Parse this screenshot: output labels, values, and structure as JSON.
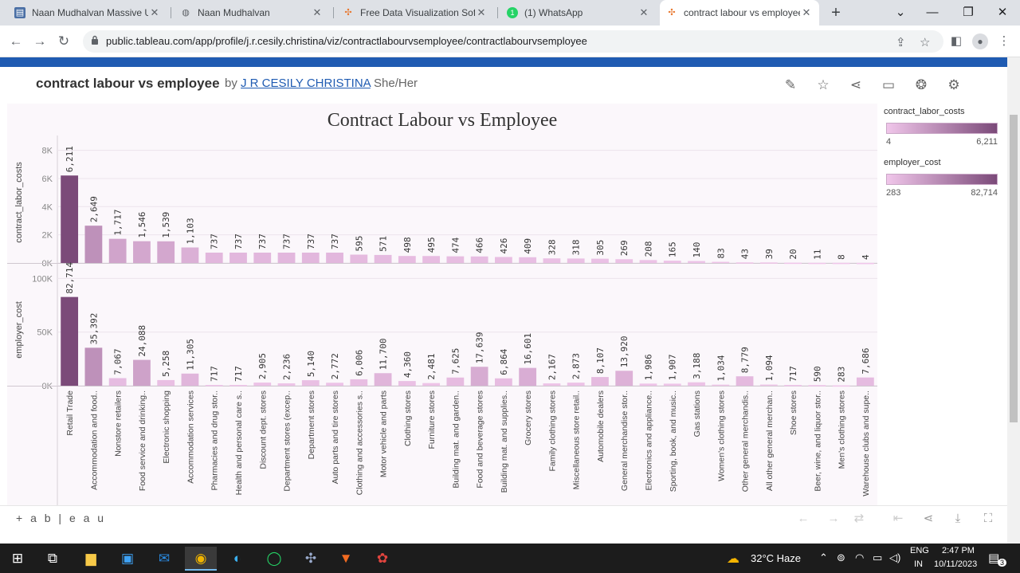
{
  "browser": {
    "tabs": [
      {
        "title": "Naan Mudhalvan Massive U",
        "icon": "book-icon"
      },
      {
        "title": "Naan Mudhalvan",
        "icon": "globe-icon"
      },
      {
        "title": "Free Data Visualization Softw",
        "icon": "tableau-icon"
      },
      {
        "title": "(1) WhatsApp",
        "icon": "whatsapp-icon"
      },
      {
        "title": "contract labour vs employee",
        "icon": "tableau-icon"
      }
    ],
    "url": "public.tableau.com/app/profile/j.r.cesily.christina/viz/contractlabourvsemployee/contractlabourvsemployee"
  },
  "viz": {
    "title": "contract labour vs employee",
    "by": "by",
    "author": "J R CESILY CHRISTINA",
    "pronouns": "She/Her",
    "footer_logo": "+ a b | e a u"
  },
  "legends": [
    {
      "title": "contract_labor_costs",
      "min": "4",
      "max": "6,211"
    },
    {
      "title": "employer_cost",
      "min": "283",
      "max": "82,714"
    }
  ],
  "colors": {
    "light": "#f0c6ea",
    "dark": "#7b4a79",
    "brand": "#1f5bb2"
  },
  "chart_data": {
    "type": "bar",
    "title": "Contract Labour vs Employee",
    "categories": [
      "Retail Trade",
      "Accommodation and food..",
      "Nonstore retailers",
      "Food service and drinking..",
      "Electronic shopping",
      "Accommodation services",
      "Pharmacies and drug stor..",
      "Health and personal care s..",
      "Discount dept. stores",
      "Department stores (excep..",
      "Department stores",
      "Auto parts and tire stores",
      "Clothing and accessories s..",
      "Motor vehicle and parts",
      "Clothing stores",
      "Furniture stores",
      "Building mat. and garden..",
      "Food and beverage stores",
      "Building mat. and supplies..",
      "Grocery stores",
      "Family clothing stores",
      "Miscellaneous store retail..",
      "Automobile dealers",
      "General merchandise stor..",
      "Electronics and appliance..",
      "Sporting, book, and music..",
      "Gas stations",
      "Women's clothing stores",
      "Other general merchandis..",
      "All other general merchan..",
      "Shoe stores",
      "Beer, wine, and liquor stor..",
      "Men's clothing stores",
      "Warehouse clubs and supe.."
    ],
    "series": [
      {
        "name": "contract_labor_costs",
        "values": [
          6211,
          2649,
          1717,
          1546,
          1539,
          1103,
          737,
          737,
          737,
          737,
          737,
          737,
          595,
          571,
          498,
          495,
          474,
          466,
          426,
          409,
          328,
          318,
          305,
          269,
          208,
          165,
          140,
          83,
          43,
          39,
          20,
          11,
          8,
          4
        ],
        "labels": [
          "6,211",
          "2,649",
          "1,717",
          "1,546",
          "1,539",
          "1,103",
          "737",
          "737",
          "737",
          "737",
          "737",
          "737",
          "595",
          "571",
          "498",
          "495",
          "474",
          "466",
          "426",
          "409",
          "328",
          "318",
          "305",
          "269",
          "208",
          "165",
          "140",
          "83",
          "43",
          "39",
          "20",
          "11",
          "8",
          "4"
        ],
        "ylabel": "contract_labor_costs",
        "ticks": [
          {
            "v": 0,
            "t": "0K"
          },
          {
            "v": 2000,
            "t": "2K"
          },
          {
            "v": 4000,
            "t": "4K"
          },
          {
            "v": 6000,
            "t": "6K"
          },
          {
            "v": 8000,
            "t": "8K"
          }
        ],
        "ylim": [
          0,
          8600
        ]
      },
      {
        "name": "employer_cost",
        "values": [
          82714,
          35392,
          7067,
          24088,
          5258,
          11305,
          717,
          717,
          2905,
          2236,
          5140,
          2772,
          6006,
          11700,
          4360,
          2481,
          7625,
          17639,
          6864,
          16601,
          2167,
          2873,
          8107,
          13920,
          1986,
          1907,
          3188,
          1034,
          8779,
          1094,
          717,
          590,
          283,
          7686
        ],
        "labels": [
          "82,714",
          "35,392",
          "7,067",
          "24,088",
          "5,258",
          "11,305",
          "717",
          "717",
          "2,905",
          "2,236",
          "5,140",
          "2,772",
          "6,006",
          "11,700",
          "4,360",
          "2,481",
          "7,625",
          "17,639",
          "6,864",
          "16,601",
          "2,167",
          "2,873",
          "8,107",
          "13,920",
          "1,986",
          "1,907",
          "3,188",
          "1,034",
          "8,779",
          "1,094",
          "717",
          "590",
          "283",
          "7,686"
        ],
        "ylabel": "employer_cost",
        "ticks": [
          {
            "v": 0,
            "t": "0K"
          },
          {
            "v": 50000,
            "t": "50K"
          },
          {
            "v": 100000,
            "t": "100K"
          }
        ],
        "ylim": [
          0,
          104000
        ]
      }
    ]
  },
  "taskbar": {
    "weather": "32°C  Haze",
    "lang1": "ENG",
    "lang2": "IN",
    "time": "2:47 PM",
    "date": "10/11/2023",
    "notif": "3"
  }
}
